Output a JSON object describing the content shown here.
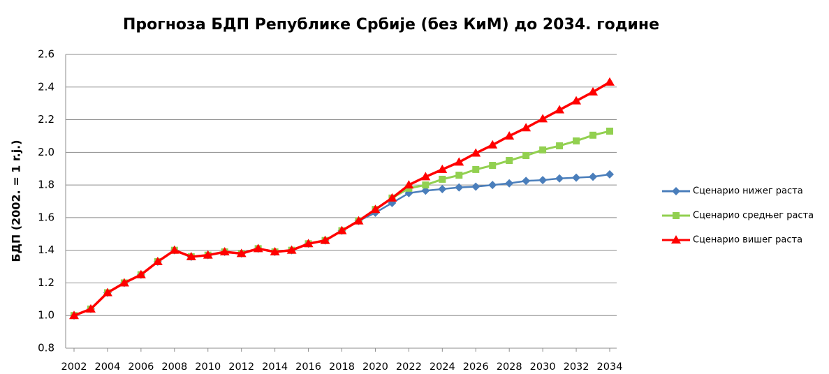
{
  "chart_data": {
    "type": "line",
    "title": "Прогноза БДП Републике Србије (без КиМ) до 2034. године",
    "y_label": "БДП (2002. = 1 r.j.)",
    "x": [
      2002,
      2003,
      2004,
      2005,
      2006,
      2007,
      2008,
      2009,
      2010,
      2011,
      2012,
      2013,
      2014,
      2015,
      2016,
      2017,
      2018,
      2019,
      2020,
      2021,
      2022,
      2023,
      2024,
      2025,
      2026,
      2027,
      2028,
      2029,
      2030,
      2031,
      2032,
      2033,
      2034
    ],
    "xlim": [
      2002,
      2034
    ],
    "xticks": [
      2002,
      2004,
      2006,
      2008,
      2010,
      2012,
      2014,
      2016,
      2018,
      2020,
      2022,
      2024,
      2026,
      2028,
      2030,
      2032,
      2034
    ],
    "ylim": [
      0.8,
      2.6
    ],
    "yticks": [
      {
        "value": 0.8,
        "label": "0.8"
      },
      {
        "value": 1.0,
        "label": "1.0"
      },
      {
        "value": 1.2,
        "label": "1.2"
      },
      {
        "value": 1.4,
        "label": "1.4"
      },
      {
        "value": 1.6,
        "label": "1.6"
      },
      {
        "value": 1.8,
        "label": "1.8"
      },
      {
        "value": 2.0,
        "label": "2.0"
      },
      {
        "value": 2.2,
        "label": "2.2"
      },
      {
        "value": 2.4,
        "label": "2.4"
      },
      {
        "value": 2.6,
        "label": "2.6"
      }
    ],
    "grid": true,
    "legend": "right",
    "series": [
      {
        "name": "Сценарио нижег раста",
        "color": "#4a7ebb",
        "marker": "diamond",
        "values": [
          1.0,
          1.04,
          1.14,
          1.2,
          1.25,
          1.33,
          1.4,
          1.36,
          1.37,
          1.39,
          1.38,
          1.41,
          1.39,
          1.4,
          1.44,
          1.46,
          1.52,
          1.58,
          1.63,
          1.69,
          1.75,
          1.765,
          1.775,
          1.785,
          1.79,
          1.8,
          1.81,
          1.825,
          1.83,
          1.84,
          1.845,
          1.85,
          1.865
        ]
      },
      {
        "name": "Сценарио средњег раста",
        "color": "#92d050",
        "marker": "square",
        "values": [
          1.0,
          1.04,
          1.14,
          1.2,
          1.25,
          1.33,
          1.4,
          1.36,
          1.37,
          1.39,
          1.38,
          1.41,
          1.39,
          1.4,
          1.44,
          1.46,
          1.52,
          1.58,
          1.65,
          1.72,
          1.78,
          1.8,
          1.835,
          1.86,
          1.895,
          1.92,
          1.95,
          1.98,
          2.015,
          2.04,
          2.07,
          2.105,
          2.13
        ]
      },
      {
        "name": "Сценарио вишег раста",
        "color": "#ff0000",
        "marker": "triangle",
        "values": [
          1.0,
          1.04,
          1.14,
          1.2,
          1.25,
          1.33,
          1.4,
          1.36,
          1.37,
          1.39,
          1.38,
          1.41,
          1.39,
          1.4,
          1.44,
          1.46,
          1.52,
          1.58,
          1.65,
          1.72,
          1.8,
          1.85,
          1.895,
          1.94,
          1.995,
          2.045,
          2.1,
          2.15,
          2.205,
          2.26,
          2.315,
          2.37,
          2.43
        ]
      }
    ]
  }
}
